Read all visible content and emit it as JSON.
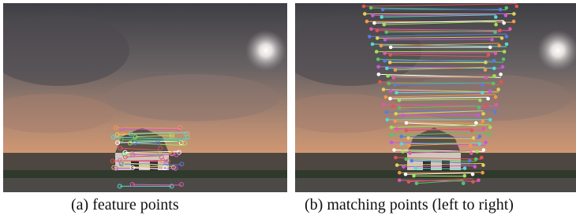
{
  "figure": {
    "panels": [
      {
        "caption": "(a) feature points"
      },
      {
        "caption": "(b) matching points (left to right)"
      }
    ]
  }
}
